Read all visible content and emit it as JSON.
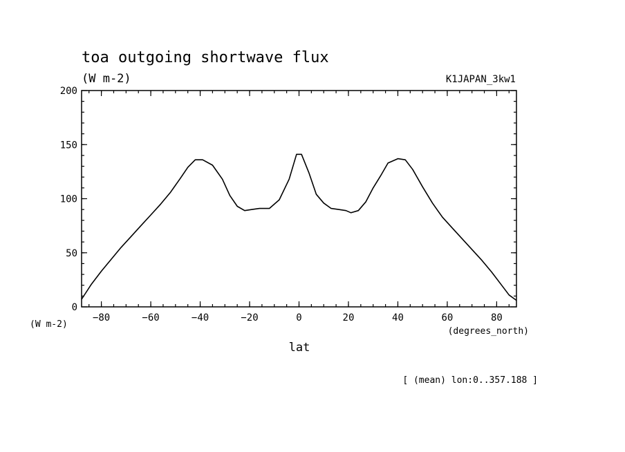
{
  "chart_data": {
    "type": "line",
    "title": "toa outgoing shortwave flux",
    "units": "(W m-2)",
    "dataset": "K1JAPAN_3kw1",
    "xlabel": "lat",
    "x_units": "(degrees_north)",
    "y_units": "(W m-2)",
    "note": "[ (mean) lon:0..357.188 ]",
    "xlim": [
      -88,
      88
    ],
    "ylim": [
      0,
      200
    ],
    "xticks": [
      -80,
      -60,
      -40,
      -20,
      0,
      20,
      40,
      60,
      80
    ],
    "yticks": [
      0,
      50,
      100,
      150,
      200
    ],
    "grid": false,
    "series": [
      {
        "color": "#000000",
        "x": [
          -88,
          -84,
          -80,
          -76,
          -72,
          -68,
          -64,
          -60,
          -56,
          -52,
          -48,
          -45,
          -42,
          -39,
          -35,
          -31,
          -28,
          -25,
          -22,
          -19,
          -16,
          -12,
          -8,
          -4,
          -1,
          1,
          4,
          7,
          10,
          13,
          16,
          19,
          21,
          24,
          27,
          30,
          33,
          36,
          40,
          43,
          46,
          50,
          54,
          58,
          62,
          66,
          70,
          74,
          78,
          82,
          85,
          88
        ],
        "y": [
          7,
          21,
          33,
          44,
          55,
          65,
          75,
          85,
          95,
          106,
          119,
          129,
          136,
          136,
          131,
          118,
          103,
          93,
          89,
          90,
          91,
          91,
          99,
          118,
          141,
          141,
          124,
          104,
          96,
          91,
          90,
          89,
          87,
          89,
          97,
          110,
          121,
          133,
          137,
          136,
          127,
          111,
          96,
          83,
          73,
          63,
          53,
          43,
          32,
          20,
          11,
          6
        ]
      }
    ]
  }
}
